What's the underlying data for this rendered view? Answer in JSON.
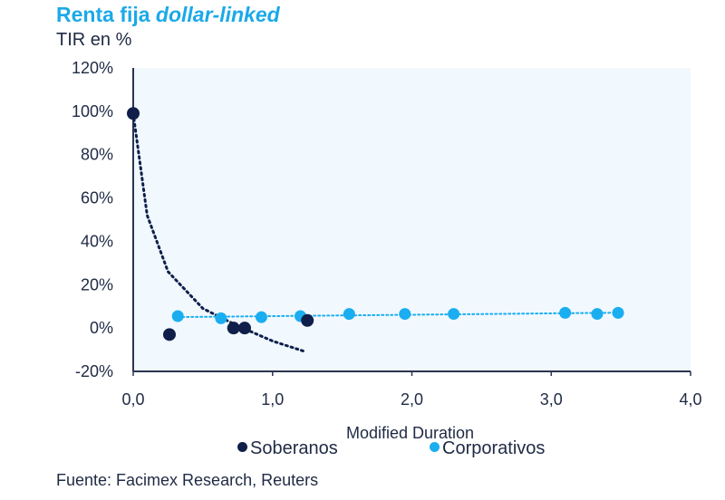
{
  "title": {
    "main": "Renta fija ",
    "emph": "dollar-linked"
  },
  "ylabel": "TIR en %",
  "source": "Fuente: Facimex Research, Reuters",
  "colors": {
    "soberanos": "#0f1f4a",
    "corporativos": "#1aaef0",
    "plot_bg": "#f1f8fe",
    "axis": "#2a3550"
  },
  "chart_data": {
    "type": "scatter",
    "title": "Renta fija dollar-linked",
    "xlabel": "Modified Duration",
    "ylabel": "TIR en %",
    "xlim": [
      0,
      4
    ],
    "ylim": [
      -20,
      120
    ],
    "x_ticks": [
      "0,0",
      "1,0",
      "2,0",
      "3,0",
      "4,0"
    ],
    "y_ticks": [
      "120%",
      "100%",
      "80%",
      "60%",
      "40%",
      "20%",
      "0%",
      "-20%"
    ],
    "legend_position": "bottom",
    "series": [
      {
        "name": "Soberanos",
        "points": [
          [
            0.0,
            99
          ],
          [
            0.26,
            -3
          ],
          [
            0.72,
            0
          ],
          [
            0.8,
            0
          ],
          [
            1.25,
            3.5
          ]
        ],
        "trendline": {
          "type": "power",
          "x_range": [
            0.0,
            1.24
          ],
          "points": [
            [
              0.0,
              99
            ],
            [
              0.1,
              52
            ],
            [
              0.25,
              26
            ],
            [
              0.5,
              9
            ],
            [
              0.75,
              1
            ],
            [
              1.0,
              -6
            ],
            [
              1.24,
              -11
            ]
          ]
        }
      },
      {
        "name": "Corporativos",
        "points": [
          [
            0.32,
            5.5
          ],
          [
            0.63,
            4.5
          ],
          [
            0.92,
            5
          ],
          [
            1.2,
            5.5
          ],
          [
            1.55,
            6.5
          ],
          [
            1.95,
            6.5
          ],
          [
            2.3,
            6.5
          ],
          [
            3.1,
            7
          ],
          [
            3.33,
            6.5
          ],
          [
            3.48,
            7
          ]
        ],
        "trendline": {
          "type": "linear",
          "x_range": [
            0.32,
            3.48
          ]
        }
      }
    ]
  }
}
